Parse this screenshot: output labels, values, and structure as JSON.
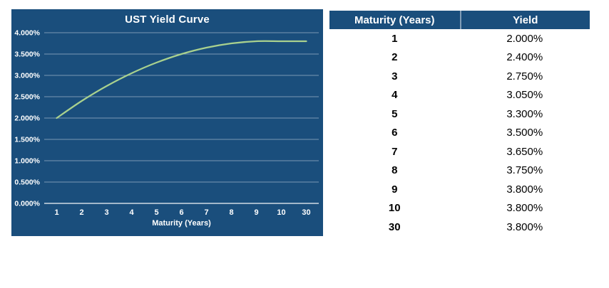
{
  "window": {
    "background_color": "#FFFFFF"
  },
  "chart": {
    "bg_color": "#1A4E7C",
    "line_color": "#A9D18E",
    "grid_color": "rgba(255,255,255,0.42)",
    "axis_color": "rgba(255,255,255,0.80)",
    "text_color": "#FFFFFF"
  },
  "chart_data": {
    "type": "line",
    "title": "UST Yield Curve",
    "xlabel": "Maturity (Years)",
    "ylabel": "",
    "categories": [
      "1",
      "2",
      "3",
      "4",
      "5",
      "6",
      "7",
      "8",
      "9",
      "10",
      "30"
    ],
    "series": [
      {
        "name": "Yield",
        "values": [
          2.0,
          2.4,
          2.75,
          3.05,
          3.3,
          3.5,
          3.65,
          3.75,
          3.8,
          3.8,
          3.8
        ]
      }
    ],
    "value_unit": "percent",
    "ylim": [
      0,
      4.0
    ],
    "ytick_step": 0.5,
    "ytick_labels": [
      "0.000%",
      "0.500%",
      "1.000%",
      "1.500%",
      "2.000%",
      "2.500%",
      "3.000%",
      "3.500%",
      "4.000%"
    ],
    "grid": true,
    "legend": false,
    "line_smooth": true
  },
  "table": {
    "headers": [
      "Maturity (Years)",
      "Yield"
    ],
    "rows": [
      {
        "maturity": "1",
        "yield": "2.000%"
      },
      {
        "maturity": "2",
        "yield": "2.400%"
      },
      {
        "maturity": "3",
        "yield": "2.750%"
      },
      {
        "maturity": "4",
        "yield": "3.050%"
      },
      {
        "maturity": "5",
        "yield": "3.300%"
      },
      {
        "maturity": "6",
        "yield": "3.500%"
      },
      {
        "maturity": "7",
        "yield": "3.650%"
      },
      {
        "maturity": "8",
        "yield": "3.750%"
      },
      {
        "maturity": "9",
        "yield": "3.800%"
      },
      {
        "maturity": "10",
        "yield": "3.800%"
      },
      {
        "maturity": "30",
        "yield": "3.800%"
      }
    ]
  }
}
